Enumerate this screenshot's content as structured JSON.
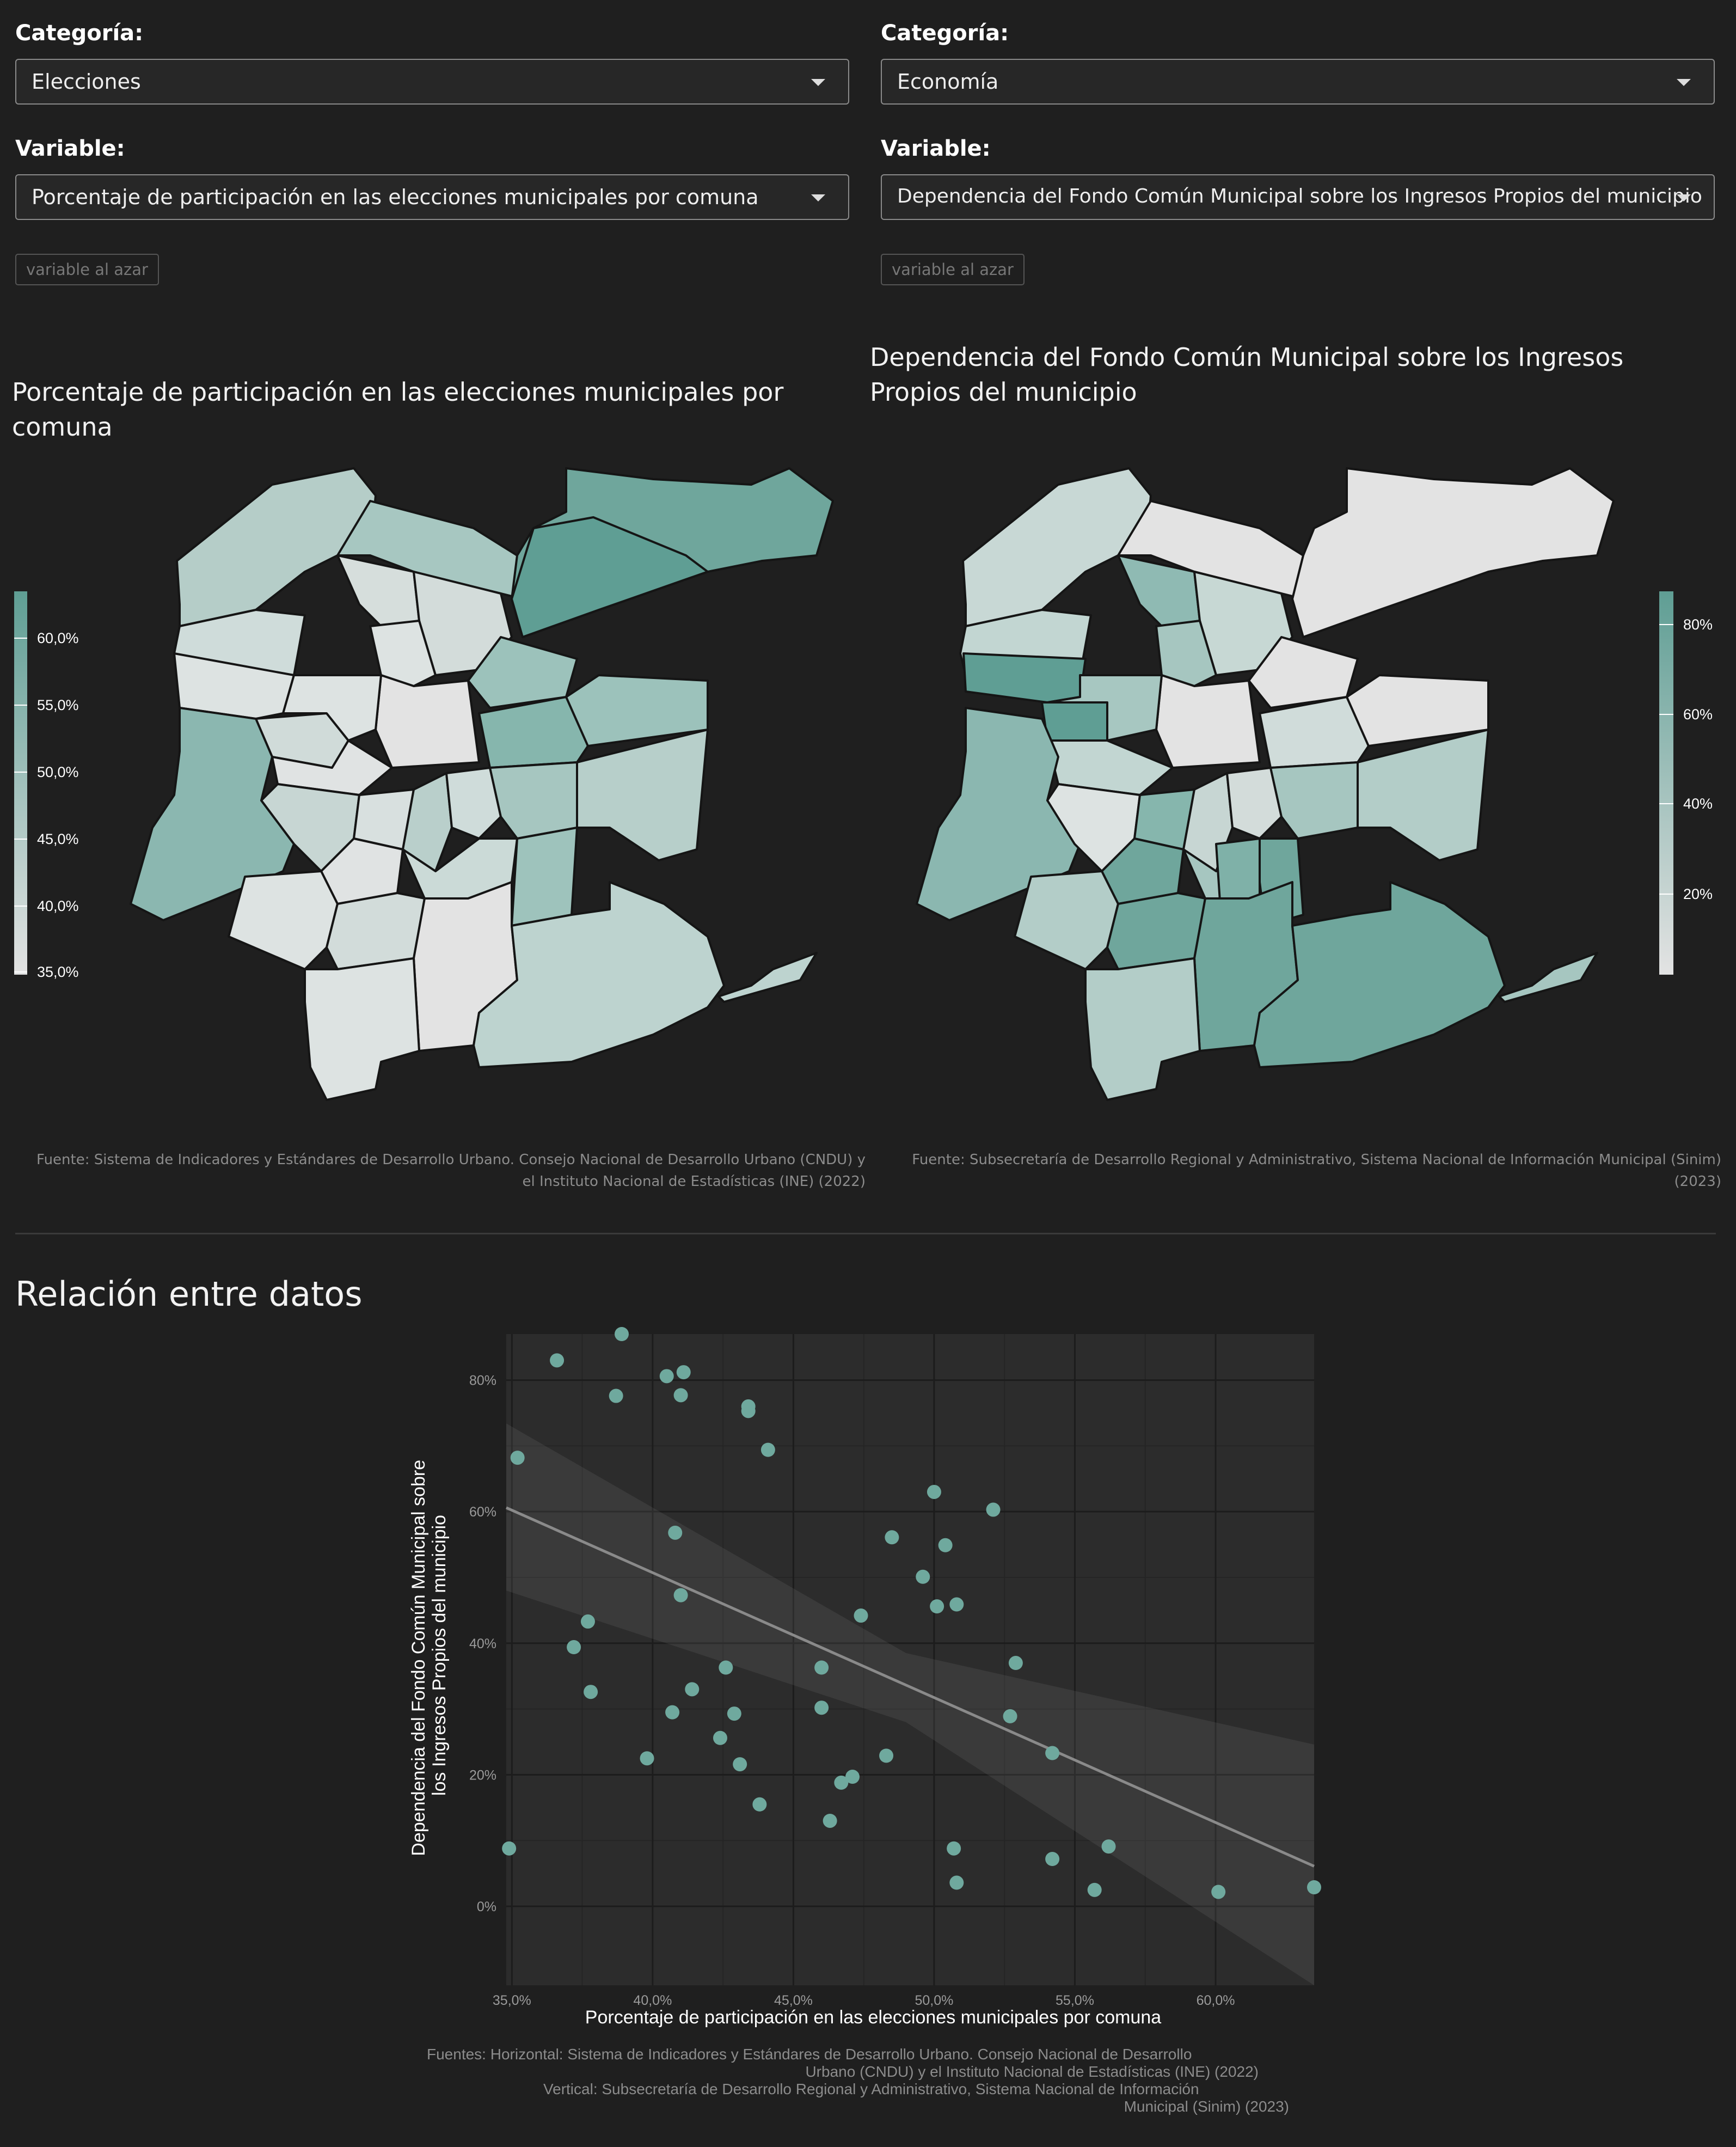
{
  "left": {
    "categoria_label": "Categoría:",
    "categoria_value": "Elecciones",
    "variable_label": "Variable:",
    "variable_value": "Porcentaje de participación en las elecciones municipales por comuna",
    "random_button": "variable al azar",
    "map_title": "Porcentaje de participación en las elecciones municipales por comuna",
    "legend_ticks": [
      "60,0%",
      "55,0%",
      "50,0%",
      "45,0%",
      "40,0%",
      "35,0%"
    ],
    "source": "Fuente: Sistema de Indicadores y Estándares de Desarrollo Urbano. Consejo Nacional de Desarrollo Urbano (CNDU) y el Instituto Nacional de Estadísticas (INE) (2022)"
  },
  "right": {
    "categoria_label": "Categoría:",
    "categoria_value": "Economía",
    "variable_label": "Variable:",
    "variable_value": "Dependencia del Fondo Común Municipal sobre los Ingresos Propios del municipio",
    "random_button": "variable al azar",
    "map_title": "Dependencia del Fondo Común Municipal sobre los Ingresos Propios del municipio",
    "legend_ticks": [
      "80%",
      "60%",
      "40%",
      "20%"
    ],
    "source": "Fuente: Subsecretaría de Desarrollo Regional y Administrativo, Sistema Nacional de Información Municipal (Sinim) (2023)"
  },
  "relation": {
    "heading": "Relación entre datos",
    "sources_line1": "Fuentes: Horizontal: Sistema de Indicadores y Estándares de Desarrollo Urbano. Consejo Nacional de Desarrollo",
    "sources_line2": "Urbano (CNDU) y el Instituto Nacional de Estadísticas (INE) (2022)",
    "sources_line3": "Vertical: Subsecretaría de Desarrollo Regional y Administrativo, Sistema Nacional de Información",
    "sources_line4": "Municipal (Sinim) (2023)"
  },
  "colors": {
    "background": "#1f1f1f",
    "teal": "#5f9e94",
    "light": "#e3e3e3",
    "point": "#6fa99e"
  },
  "chart_data": {
    "type": "scatter",
    "xlabel": "Porcentaje de participación en las elecciones municipales por comuna",
    "ylabel": "Dependencia del Fondo Común Municipal sobre los Ingresos Propios del municipio",
    "xlim": [
      34.8,
      63.5
    ],
    "ylim": [
      -12,
      87
    ],
    "x_ticks": [
      35,
      40,
      45,
      50,
      55,
      60
    ],
    "x_tick_labels": [
      "35,0%",
      "40,0%",
      "45,0%",
      "50,0%",
      "55,0%",
      "60,0%"
    ],
    "y_ticks": [
      0,
      20,
      40,
      60,
      80
    ],
    "y_tick_labels": [
      "0%",
      "20%",
      "40%",
      "60%",
      "80%"
    ],
    "grid": true,
    "trend": {
      "method": "linear",
      "start": [
        34.8,
        60.6
      ],
      "end": [
        63.5,
        6.1
      ]
    },
    "ci_band": [
      [
        34.8,
        73.4,
        48.0
      ],
      [
        49.0,
        38.5,
        28.0
      ],
      [
        63.5,
        24.6,
        -12.0
      ]
    ],
    "points": [
      [
        34.9,
        8.8
      ],
      [
        35.2,
        68.2
      ],
      [
        36.6,
        83.0
      ],
      [
        37.2,
        39.4
      ],
      [
        37.7,
        43.3
      ],
      [
        37.8,
        32.6
      ],
      [
        38.7,
        77.6
      ],
      [
        38.9,
        87.0
      ],
      [
        39.8,
        22.5
      ],
      [
        40.5,
        80.6
      ],
      [
        40.7,
        29.5
      ],
      [
        40.8,
        56.8
      ],
      [
        41.0,
        47.3
      ],
      [
        41.0,
        77.7
      ],
      [
        41.1,
        81.2
      ],
      [
        41.4,
        33.0
      ],
      [
        42.4,
        25.6
      ],
      [
        42.6,
        36.3
      ],
      [
        42.9,
        29.3
      ],
      [
        43.1,
        21.6
      ],
      [
        43.4,
        75.3
      ],
      [
        43.4,
        76.0
      ],
      [
        43.8,
        15.5
      ],
      [
        44.1,
        69.4
      ],
      [
        46.0,
        36.3
      ],
      [
        46.0,
        30.2
      ],
      [
        46.3,
        13.0
      ],
      [
        46.7,
        18.8
      ],
      [
        47.1,
        19.7
      ],
      [
        47.4,
        44.2
      ],
      [
        48.3,
        22.9
      ],
      [
        48.5,
        56.1
      ],
      [
        49.6,
        50.1
      ],
      [
        50.0,
        63.0
      ],
      [
        50.1,
        45.6
      ],
      [
        50.4,
        54.9
      ],
      [
        50.7,
        8.8
      ],
      [
        50.8,
        3.6
      ],
      [
        50.8,
        45.9
      ],
      [
        52.1,
        60.3
      ],
      [
        52.7,
        28.9
      ],
      [
        52.9,
        37.0
      ],
      [
        54.2,
        7.2
      ],
      [
        54.2,
        23.3
      ],
      [
        55.7,
        2.5
      ],
      [
        56.2,
        9.1
      ],
      [
        60.1,
        2.2
      ],
      [
        63.5,
        2.9
      ]
    ]
  }
}
